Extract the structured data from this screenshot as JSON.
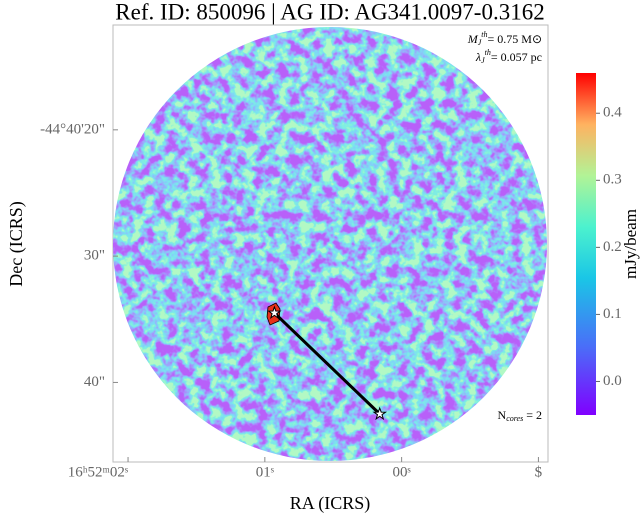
{
  "chart_data": {
    "type": "scatter",
    "title": "Ref. ID: 850096 | AG ID: AG341.0097-0.3162",
    "x_label": "RA (ICRS)",
    "y_label": "Dec (ICRS)",
    "xlim": [
      2.11,
      -1.07
    ],
    "ylim": [
      46.3,
      11.7
    ],
    "xticks": [
      {
        "value": 2,
        "label": "16ʰ52ᵐ02ˢ"
      },
      {
        "value": 1,
        "label": "01ˢ"
      },
      {
        "value": 0,
        "label": "00ˢ"
      },
      {
        "value": -1,
        "label": "$"
      }
    ],
    "yticks": [
      {
        "value": 20,
        "label": "-44°40'20\""
      },
      {
        "value": 30,
        "label": "30\""
      },
      {
        "value": 40,
        "label": "40\""
      }
    ],
    "cores": {
      "x": [
        0.93,
        0.16
      ],
      "y": [
        34.5,
        42.5
      ]
    },
    "colorbar": {
      "label": "mJy/beam",
      "lim": [
        -0.05,
        0.46
      ],
      "ticks": [
        {
          "value": 0,
          "label": "0.0"
        },
        0.1,
        0.2,
        0.3,
        0.4
      ]
    },
    "annotations": {
      "mass": {
        "symbol": "M",
        "subscript": "J",
        "superscript": "th",
        "text": "= 0.75 M⊙"
      },
      "length": {
        "symbol": "λ",
        "subscript": "J",
        "superscript": "th",
        "text": "= 0.057 pc"
      },
      "ncores": {
        "symbol": "N",
        "subscript": "cores",
        "text": " = 2"
      }
    }
  }
}
